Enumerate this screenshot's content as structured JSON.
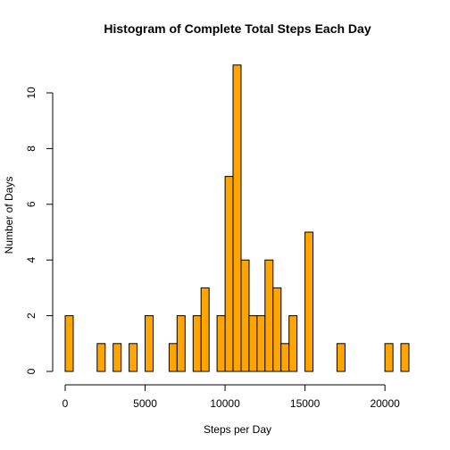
{
  "chart_data": {
    "type": "bar",
    "title": "Histogram of Complete Total Steps Each Day",
    "xlabel": "Steps per Day",
    "ylabel": "Number of Days",
    "xlim": [
      0,
      21500
    ],
    "ylim": [
      0,
      11
    ],
    "bin_width": 500,
    "x_ticks": [
      0,
      5000,
      10000,
      15000,
      20000
    ],
    "x_tick_labels": [
      "0",
      "5000",
      "10000",
      "15000",
      "20000"
    ],
    "y_ticks": [
      0,
      2,
      4,
      6,
      8,
      10
    ],
    "y_tick_labels": [
      "0",
      "2",
      "4",
      "6",
      "8",
      "10"
    ],
    "bar_color": "#FFA500",
    "bar_edge": "#000000",
    "bins": [
      {
        "start": 0,
        "count": 2
      },
      {
        "start": 2000,
        "count": 1
      },
      {
        "start": 3000,
        "count": 1
      },
      {
        "start": 4000,
        "count": 1
      },
      {
        "start": 5000,
        "count": 2
      },
      {
        "start": 6500,
        "count": 1
      },
      {
        "start": 7000,
        "count": 2
      },
      {
        "start": 8000,
        "count": 2
      },
      {
        "start": 8500,
        "count": 3
      },
      {
        "start": 9500,
        "count": 2
      },
      {
        "start": 10000,
        "count": 7
      },
      {
        "start": 10500,
        "count": 11
      },
      {
        "start": 11000,
        "count": 4
      },
      {
        "start": 11500,
        "count": 2
      },
      {
        "start": 12000,
        "count": 2
      },
      {
        "start": 12500,
        "count": 4
      },
      {
        "start": 13000,
        "count": 3
      },
      {
        "start": 13500,
        "count": 1
      },
      {
        "start": 14000,
        "count": 2
      },
      {
        "start": 15000,
        "count": 5
      },
      {
        "start": 17000,
        "count": 1
      },
      {
        "start": 20000,
        "count": 1
      },
      {
        "start": 21000,
        "count": 1
      }
    ]
  }
}
